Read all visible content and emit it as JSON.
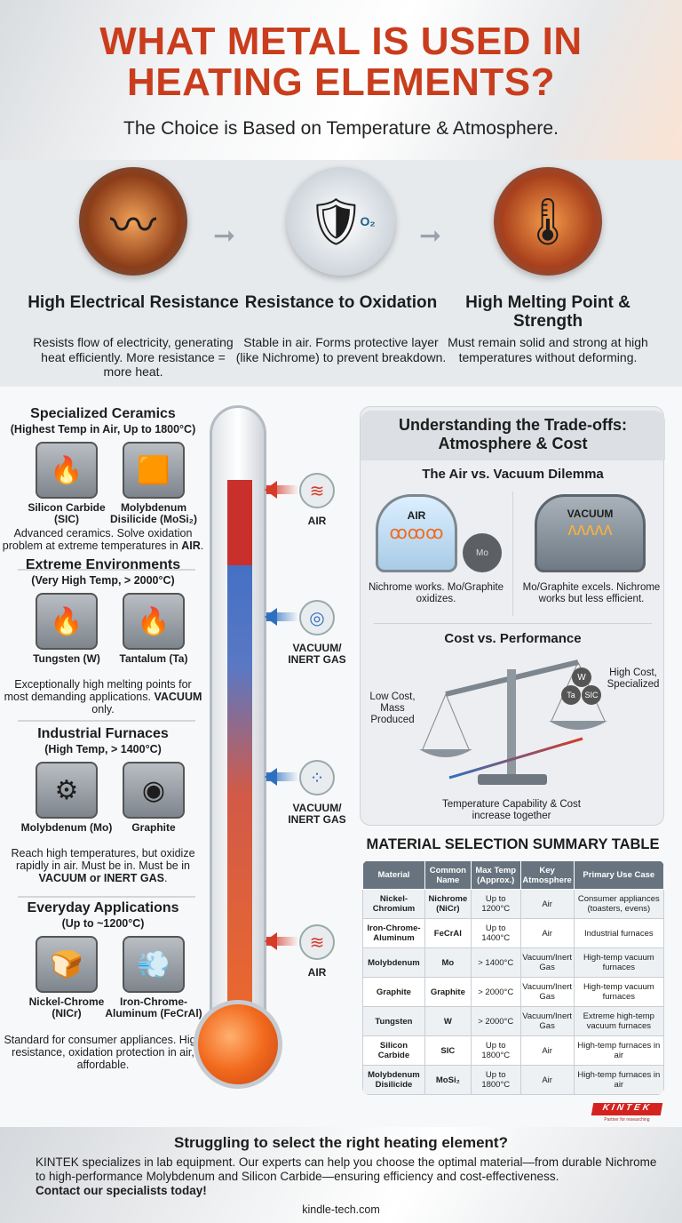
{
  "header": {
    "title_line1": "WHAT METAL IS USED IN",
    "title_line2": "HEATING ELEMENTS?",
    "subtitle": "The Choice is Based on Temperature & Atmosphere."
  },
  "principles": [
    {
      "icon": "heating-coil-icon",
      "title": "High Electrical Resistance",
      "body": "Resists flow of electricity, generating heat efficiently. More resistance = more heat."
    },
    {
      "icon": "shield-oxygen-icon",
      "title": "Resistance to Oxidation",
      "badge": "O₂",
      "body": "Stable in air. Forms protective layer (like Nichrome) to prevent breakdown."
    },
    {
      "icon": "hot-metal-thermometer-icon",
      "title": "High Melting Point & Strength",
      "body": "Must remain solid and strong at high temperatures without deforming."
    }
  ],
  "categories": [
    {
      "title": "Specialized Ceramics",
      "sub": "(Highest Temp in Air, Up to 1800°C)",
      "items": [
        "Silicon Carbide (SIC)",
        "Molybdenum Disilicide (MoSi₂)"
      ],
      "desc": "Advanced ceramics. Solve oxidation problem at extreme temperatures in ",
      "desc_bold": "AIR",
      "desc_end": "."
    },
    {
      "title": "Extreme Environments",
      "sub": "(Very High Temp, > 2000°C)",
      "items": [
        "Tungsten (W)",
        "Tantalum (Ta)"
      ],
      "desc": "Exceptionally high melting points for most demanding applications. ",
      "desc_bold": "VACUUM",
      "desc_end": " only."
    },
    {
      "title": "Industrial Furnaces",
      "sub": "(High Temp, > 1400°C)",
      "items": [
        "Molybdenum (Mo)",
        "Graphite"
      ],
      "desc": "Reach high temperatures, but oxidize rapidly in air. Must be in. Must be in ",
      "desc_bold": "VACUUM or INERT GAS",
      "desc_end": "."
    },
    {
      "title": "Everyday Applications",
      "sub": "(Up to ~1200°C)",
      "items": [
        "Nickel-Chrome (NICr)",
        "Iron-Chrome-Aluminum (FeCrAl)"
      ],
      "desc": "Standard for consumer appliances. High resistance, oxidation protection in air, affordable.",
      "desc_bold": "",
      "desc_end": ""
    }
  ],
  "atmospheres": [
    "AIR",
    "VACUUM/ INERT GAS",
    "VACUUM/ INERT GAS",
    "AIR"
  ],
  "tradeoffs": {
    "title": "Understanding the Trade-offs: Atmosphere & Cost",
    "dilemma_title": "The Air vs. Vacuum Dilemma",
    "air_label": "AIR",
    "mo_label": "Mo",
    "air_desc": "Nichrome works. Mo/Graphite oxidizes.",
    "vacuum_label": "VACUUM",
    "vacuum_desc": "Mo/Graphite excels. Nichrome works but less efficient.",
    "cost_title": "Cost vs. Performance",
    "low_cost": "Low Cost, Mass Produced",
    "high_cost": "High Cost, Specialized",
    "balls": [
      "W",
      "Ta",
      "SIC"
    ],
    "arrow_caption": "Temperature Capability & Cost increase together"
  },
  "table": {
    "title": "MATERIAL SELECTION SUMMARY TABLE",
    "headers": [
      "Material",
      "Common Name",
      "Max Temp (Approx.)",
      "Key Atmosphere",
      "Primary Use Case"
    ],
    "rows": [
      [
        "Nickel-Chromium",
        "Nichrome (NiCr)",
        "Up to 1200°C",
        "Air",
        "Consumer appliances (toasters, evens)"
      ],
      [
        "Iron-Chrome-Aluminum",
        "FeCrAl",
        "Up to 1400°C",
        "Air",
        "Industrial furnaces"
      ],
      [
        "Molybdenum",
        "Mo",
        "> 1400°C",
        "Vacuum/Inert Gas",
        "High-temp vacuum furnaces"
      ],
      [
        "Graphite",
        "Graphite",
        "> 2000°C",
        "Vacuum/Inert Gas",
        "High-temp vacuum furnaces"
      ],
      [
        "Tungsten",
        "W",
        "> 2000°C",
        "Vacuum/Inert Gas",
        "Extreme high-temp vacuum furnaces"
      ],
      [
        "Silicon Carbide",
        "SIC",
        "Up to 1800°C",
        "Air",
        "High-temp furnaces in air"
      ],
      [
        "Molybdenum Disilicide",
        "MoSi₂",
        "Up to 1800°C",
        "Air",
        "High-temp furnaces in air"
      ]
    ]
  },
  "logo": {
    "text": "KINTEK",
    "tagline": "Partner for researching"
  },
  "footer": {
    "heading": "Struggling to select the right heating element?",
    "body": "KINTEK specializes in lab equipment. Our experts can help you choose the optimal material—from durable Nichrome to high-performance Molybdenum and Silicon Carbide—ensuring efficiency and cost-effectiveness.",
    "cta": "Contact our specialists today!",
    "url": "kindle-tech.com"
  },
  "colors": {
    "title": "#c93d1d",
    "air_arrow": "#d63a2a",
    "vacuum_arrow": "#2f6fc0",
    "table_header": "#67737e"
  }
}
